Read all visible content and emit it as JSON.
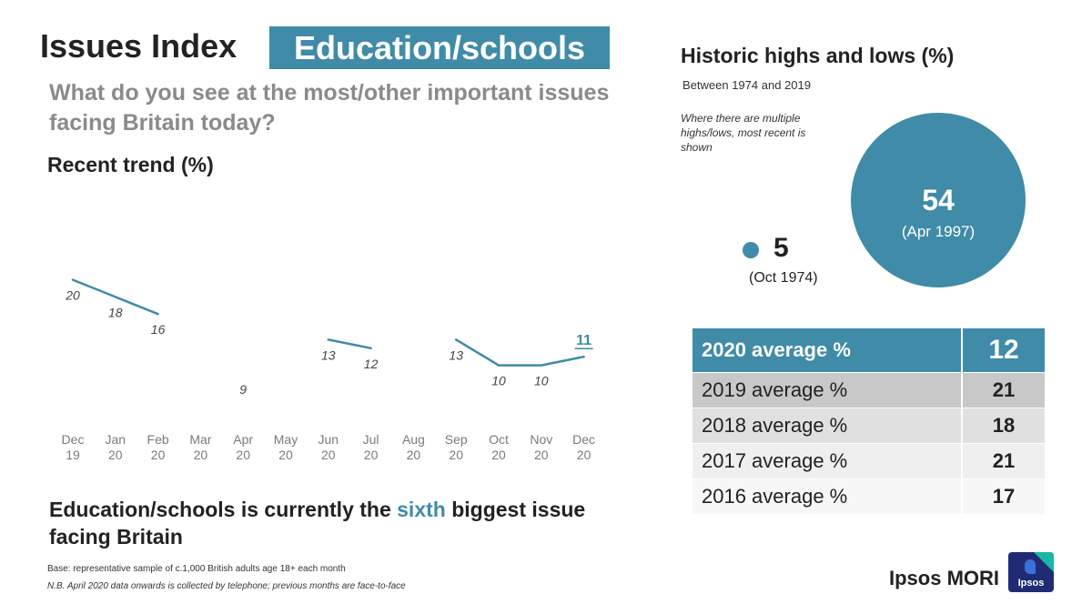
{
  "header": {
    "title": "Issues Index",
    "topic": "Education/schools",
    "question": "What do you see at the most/other important issues facing Britain today?"
  },
  "trend_title": "Recent trend (%)",
  "chart_data": {
    "type": "line",
    "categories": [
      [
        "Dec",
        "19"
      ],
      [
        "Jan",
        "20"
      ],
      [
        "Feb",
        "20"
      ],
      [
        "Mar",
        "20"
      ],
      [
        "Apr",
        "20"
      ],
      [
        "May",
        "20"
      ],
      [
        "Jun",
        "20"
      ],
      [
        "Jul",
        "20"
      ],
      [
        "Aug",
        "20"
      ],
      [
        "Sep",
        "20"
      ],
      [
        "Oct",
        "20"
      ],
      [
        "Nov",
        "20"
      ],
      [
        "Dec",
        "20"
      ]
    ],
    "values": [
      20,
      18,
      16,
      null,
      9,
      null,
      13,
      12,
      null,
      13,
      10,
      10,
      11
    ],
    "line_visible": [
      true,
      true,
      true,
      false,
      false,
      false,
      true,
      true,
      false,
      true,
      true,
      true,
      true
    ],
    "latest_highlight_color": "#3f8ba8",
    "line_color": "#3f8ba8",
    "grid": false
  },
  "conclusion": {
    "before": "Education/schools is currently the ",
    "highlight": "sixth",
    "after": " biggest issue facing Britain"
  },
  "notes": {
    "base": "Base: representative sample of c.1,000 British adults age 18+ each month",
    "nb": "N.B. April 2020 data onwards is collected by telephone; previous months are face-to-face"
  },
  "historic": {
    "title": "Historic highs and lows (%)",
    "range": "Between 1974 and 2019",
    "note": "Where there are multiple highs/lows,  most recent is shown",
    "high": {
      "value": "54",
      "date": "(Apr 1997)"
    },
    "low": {
      "value": "5",
      "date": "(Oct 1974)"
    }
  },
  "averages": {
    "current": {
      "label": "2020 average %",
      "value": "12"
    },
    "rows": [
      {
        "label": "2019 average %",
        "value": "21"
      },
      {
        "label": "2018 average %",
        "value": "18"
      },
      {
        "label": "2017 average %",
        "value": "21"
      },
      {
        "label": "2016 average %",
        "value": "17"
      }
    ]
  },
  "brand": {
    "name": "Ipsos MORI",
    "logo_text": "Ipsos"
  },
  "colors": {
    "accent": "#3f8ba8",
    "muted_text": "#8a8a8a"
  }
}
